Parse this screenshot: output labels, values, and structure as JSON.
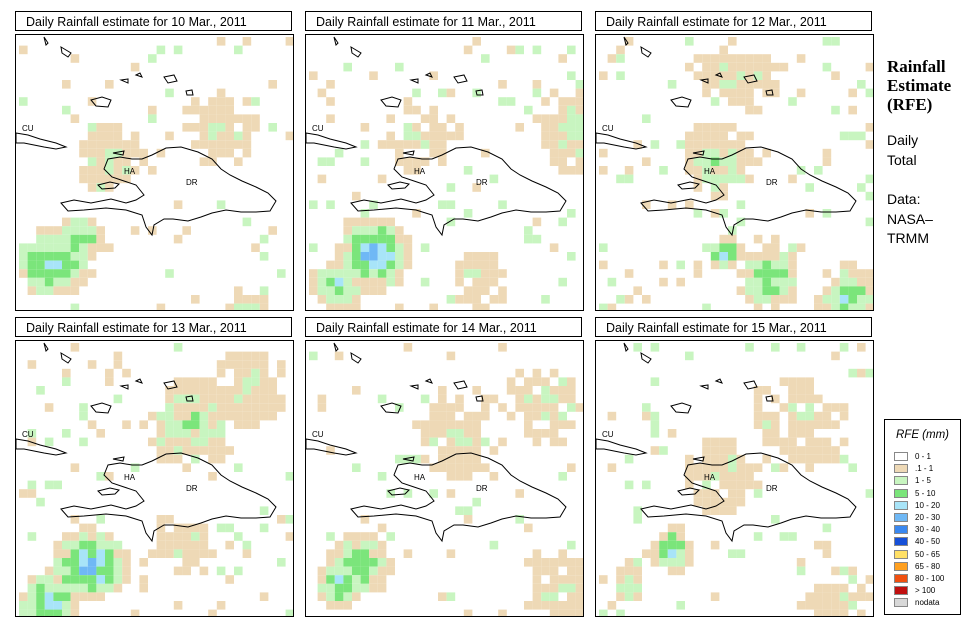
{
  "panels": [
    {
      "title": "Daily Rainfall estimate for  10 Mar., 2011"
    },
    {
      "title": "Daily Rainfall estimate for  11 Mar., 2011"
    },
    {
      "title": "Daily Rainfall estimate for  12 Mar., 2011"
    },
    {
      "title": "Daily Rainfall estimate for  13 Mar., 2011"
    },
    {
      "title": "Daily Rainfall estimate for  14 Mar., 2011"
    },
    {
      "title": "Daily Rainfall estimate for  15 Mar., 2011"
    }
  ],
  "map_labels": {
    "cu": "CU",
    "ha": "HA",
    "dr": "DR"
  },
  "sidebar": {
    "title_line1": "Rainfall",
    "title_line2": "Estimate",
    "title_line3": "(RFE)",
    "period_line1": "Daily",
    "period_line2": "Total",
    "source_line1": "Data:",
    "source_line2": "NASA–",
    "source_line3": "TRMM"
  },
  "legend": {
    "title": "RFE (mm)",
    "items": [
      {
        "label": "0 - 1",
        "color": "#ffffff"
      },
      {
        "label": ".1 - 1",
        "color": "#eed9b6"
      },
      {
        "label": "1 - 5",
        "color": "#c8f5c0"
      },
      {
        "label": "5 - 10",
        "color": "#7be57b"
      },
      {
        "label": "10 - 20",
        "color": "#a8e4f8"
      },
      {
        "label": "20 - 30",
        "color": "#6fb8f5"
      },
      {
        "label": "30 - 40",
        "color": "#3a88f0"
      },
      {
        "label": "40 - 50",
        "color": "#1650d8"
      },
      {
        "label": "50 - 65",
        "color": "#ffe066"
      },
      {
        "label": "65 - 80",
        "color": "#ffa020"
      },
      {
        "label": "80 - 100",
        "color": "#f05010"
      },
      {
        "label": "> 100",
        "color": "#c01010"
      },
      {
        "label": "nodata",
        "color": "#d8d8d8"
      }
    ]
  }
}
